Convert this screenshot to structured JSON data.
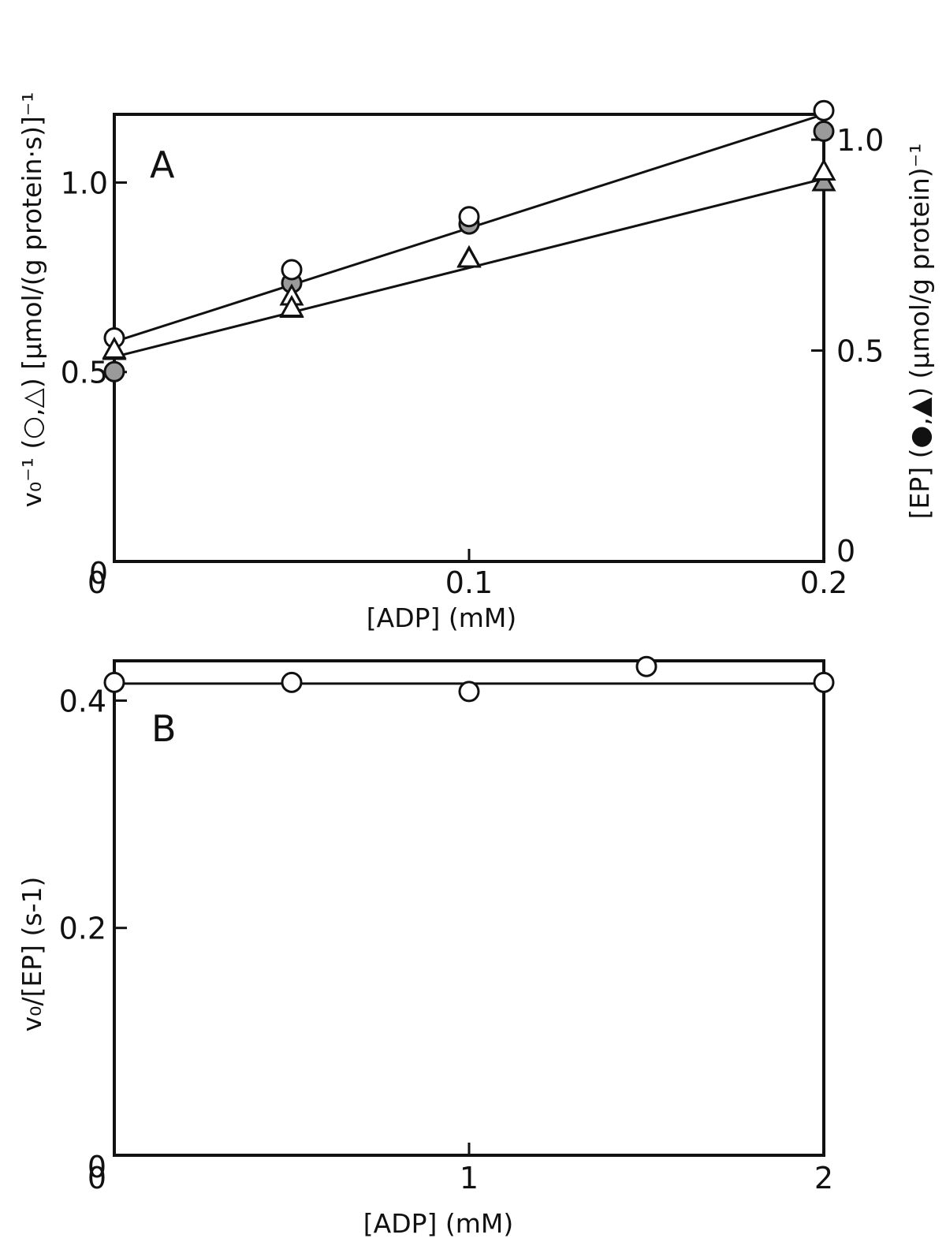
{
  "chart_data": [
    {
      "panel": "A",
      "type": "line",
      "xlabel": "[ADP] (mM)",
      "ylabel_left": "v₀⁻¹ (○,△) [μmol/(g protein·s)]⁻¹",
      "ylabel_right": "[EP] (●,▲) (μmol/g protein)⁻¹",
      "x_ticks": [
        "0",
        "0.1",
        "0.2"
      ],
      "x_tick_values": [
        0,
        0.1,
        0.2
      ],
      "y_left_ticks": [
        "0",
        "0.5",
        "1.0"
      ],
      "y_left_tick_values": [
        0,
        0.5,
        1.0
      ],
      "y_right_ticks": [
        "0",
        "0.5",
        "1.0"
      ],
      "y_right_tick_values": [
        0,
        0.5,
        1.0
      ],
      "xlim": [
        0,
        0.2
      ],
      "ylim_left": [
        0,
        1.18
      ],
      "ylim_right": [
        0,
        1.06
      ],
      "grid": false,
      "series": [
        {
          "marker": "open-circle",
          "axis": "left",
          "x": [
            0,
            0.05,
            0.1,
            0.2
          ],
          "y": [
            0.59,
            0.77,
            0.91,
            1.19
          ],
          "fit": [
            0.58,
            1.18
          ]
        },
        {
          "marker": "filled-circle",
          "axis": "right",
          "x": [
            0,
            0.05,
            0.1,
            0.2
          ],
          "y": [
            0.45,
            0.66,
            0.8,
            1.02
          ]
        },
        {
          "marker": "open-triangle",
          "axis": "left",
          "x": [
            0,
            0.05,
            0.05,
            0.1,
            0.2
          ],
          "y": [
            0.56,
            0.7,
            0.67,
            0.8,
            1.03
          ],
          "fit": [
            0.54,
            1.01
          ]
        },
        {
          "marker": "filled-triangle",
          "axis": "right",
          "x": [
            0,
            0.05,
            0.1,
            0.2
          ],
          "y": [
            0.5,
            0.6,
            0.72,
            0.9
          ]
        }
      ]
    },
    {
      "panel": "B",
      "type": "line",
      "xlabel": "[ADP] (mM)",
      "ylabel": "v₀/[EP] (s-1)",
      "x_ticks": [
        "0",
        "1",
        "2"
      ],
      "x_tick_values": [
        0,
        1,
        2
      ],
      "y_ticks": [
        "0",
        "0.2",
        "0.4"
      ],
      "y_tick_values": [
        0,
        0.2,
        0.4
      ],
      "xlim": [
        0,
        2
      ],
      "ylim": [
        0,
        0.435
      ],
      "grid": false,
      "series": [
        {
          "marker": "open-circle",
          "x": [
            0,
            0.5,
            1,
            1.5,
            2
          ],
          "y": [
            0.416,
            0.416,
            0.408,
            0.43,
            0.416
          ],
          "fit": [
            0.415,
            0.415
          ]
        }
      ]
    }
  ]
}
